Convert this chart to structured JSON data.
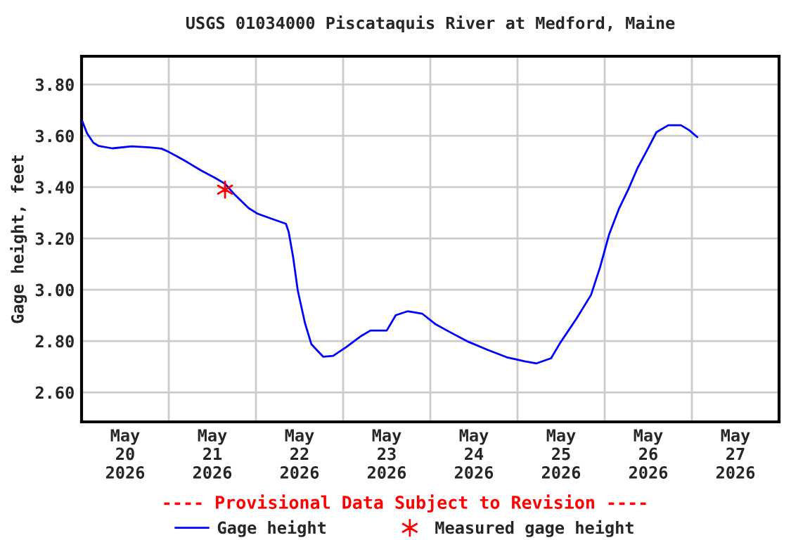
{
  "chart_data": {
    "type": "line",
    "title": "USGS 01034000 Piscataquis River at Medford, Maine",
    "ylabel": "Gage height, feet",
    "annotations": [
      "---- Provisional Data Subject to Revision ----"
    ],
    "series": [
      {
        "name": "Gage height",
        "color": "#0000ff",
        "marker": "none",
        "line_style": "solid",
        "x": [
          "2026-05-20T00:15",
          "2026-05-20T01:30",
          "2026-05-20T03:15",
          "2026-05-20T04:45",
          "2026-05-20T08:30",
          "2026-05-20T13:45",
          "2026-05-20T18:45",
          "2026-05-20T22:00",
          "2026-05-21T00:00",
          "2026-05-21T02:30",
          "2026-05-21T05:15",
          "2026-05-21T09:00",
          "2026-05-21T12:45",
          "2026-05-21T15:30",
          "2026-05-21T18:00",
          "2026-05-21T22:00",
          "2026-05-22T00:30",
          "2026-05-22T04:15",
          "2026-05-22T08:15",
          "2026-05-22T09:00",
          "2026-05-22T10:15",
          "2026-05-22T11:30",
          "2026-05-22T13:30",
          "2026-05-22T15:15",
          "2026-05-22T18:30",
          "2026-05-22T21:15",
          "2026-05-23T01:00",
          "2026-05-23T05:00",
          "2026-05-23T07:30",
          "2026-05-23T12:00",
          "2026-05-23T14:30",
          "2026-05-23T17:45",
          "2026-05-23T21:45",
          "2026-05-24T01:30",
          "2026-05-24T05:30",
          "2026-05-24T10:30",
          "2026-05-24T15:45",
          "2026-05-24T21:00",
          "2026-05-25T02:00",
          "2026-05-25T05:15",
          "2026-05-25T09:15",
          "2026-05-25T11:45",
          "2026-05-25T16:15",
          "2026-05-25T20:15",
          "2026-05-25T22:45",
          "2026-05-26T01:15",
          "2026-05-26T04:00",
          "2026-05-26T06:30",
          "2026-05-26T09:00",
          "2026-05-26T11:45",
          "2026-05-26T14:15",
          "2026-05-26T17:30",
          "2026-05-26T21:00",
          "2026-05-26T23:15",
          "2026-05-27T01:30"
        ],
        "values": [
          3.655,
          3.61,
          3.573,
          3.56,
          3.551,
          3.559,
          3.555,
          3.55,
          3.537,
          3.518,
          3.496,
          3.464,
          3.436,
          3.413,
          3.373,
          3.318,
          3.296,
          3.277,
          3.257,
          3.226,
          3.126,
          2.998,
          2.87,
          2.788,
          2.739,
          2.742,
          2.778,
          2.82,
          2.841,
          2.841,
          2.901,
          2.916,
          2.907,
          2.865,
          2.834,
          2.797,
          2.766,
          2.737,
          2.721,
          2.713,
          2.733,
          2.793,
          2.888,
          2.98,
          3.089,
          3.217,
          3.318,
          3.391,
          3.473,
          3.546,
          3.614,
          3.641,
          3.641,
          3.622,
          3.595
        ]
      },
      {
        "name": "Measured gage height",
        "type": "scatter",
        "color": "#ff0000",
        "marker": "cross",
        "x": [
          "2026-05-21T15:30"
        ],
        "values": [
          3.39
        ]
      }
    ],
    "xlim": [
      "2026-05-20T00:00",
      "2026-05-28T00:00"
    ],
    "xticks": [
      {
        "value": "2026-05-21T00:00",
        "label": null
      },
      {
        "value": "2026-05-22T00:00",
        "label": null
      },
      {
        "value": "2026-05-23T00:00",
        "label": null
      },
      {
        "value": "2026-05-24T00:00",
        "label": null
      },
      {
        "value": "2026-05-25T00:00",
        "label": null
      },
      {
        "value": "2026-05-26T00:00",
        "label": null
      },
      {
        "value": "2026-05-27T00:00",
        "label": null
      },
      {
        "value": "2026-05-20T12:00",
        "label": "May\n20\n2026"
      },
      {
        "value": "2026-05-21T12:00",
        "label": "May\n21\n2026"
      },
      {
        "value": "2026-05-22T12:00",
        "label": "May\n22\n2026"
      },
      {
        "value": "2026-05-23T12:00",
        "label": "May\n23\n2026"
      },
      {
        "value": "2026-05-24T12:00",
        "label": "May\n24\n2026"
      },
      {
        "value": "2026-05-25T12:00",
        "label": "May\n25\n2026"
      },
      {
        "value": "2026-05-26T12:00",
        "label": "May\n26\n2026"
      },
      {
        "value": "2026-05-27T12:00",
        "label": "May\n27\n2026"
      }
    ],
    "ylim": [
      2.485,
      3.91
    ],
    "yticks": [
      {
        "value": 2.6,
        "label": "2.60"
      },
      {
        "value": 2.8,
        "label": "2.80"
      },
      {
        "value": 3.0,
        "label": "3.00"
      },
      {
        "value": 3.2,
        "label": "3.20"
      },
      {
        "value": 3.4,
        "label": "3.40"
      },
      {
        "value": 3.6,
        "label": "3.60"
      },
      {
        "value": 3.8,
        "label": "3.80"
      }
    ],
    "grid": true,
    "legend": "bottom"
  }
}
